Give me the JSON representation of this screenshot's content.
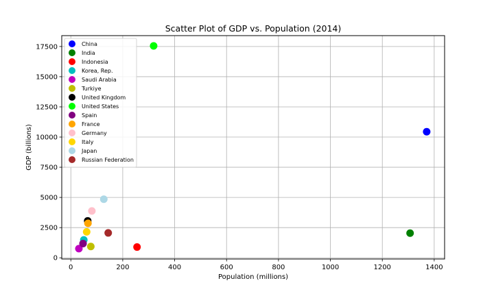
{
  "chart_data": {
    "type": "scatter",
    "title": "Scatter Plot of GDP vs. Population (2014)",
    "xlabel": "Population (millions)",
    "ylabel": "GDP (billions)",
    "xlim": [
      -35,
      1440
    ],
    "ylim": [
      -100,
      18400
    ],
    "xticks": [
      0,
      200,
      400,
      600,
      800,
      1000,
      1200,
      1400
    ],
    "yticks": [
      0,
      2500,
      5000,
      7500,
      10000,
      12500,
      15000,
      17500
    ],
    "grid": true,
    "legend_position": "upper-left",
    "series": [
      {
        "name": "China",
        "color": "#0000ff",
        "x": 1371,
        "y": 10440
      },
      {
        "name": "India",
        "color": "#008000",
        "x": 1307,
        "y": 2040
      },
      {
        "name": "Indonesia",
        "color": "#ff0000",
        "x": 255,
        "y": 890
      },
      {
        "name": "Korea, Rep.",
        "color": "#00bfbf",
        "x": 50,
        "y": 1480
      },
      {
        "name": "Saudi Arabia",
        "color": "#bf00bf",
        "x": 31,
        "y": 760
      },
      {
        "name": "Turkiye",
        "color": "#bfbf00",
        "x": 77,
        "y": 935
      },
      {
        "name": "United Kingdom",
        "color": "#000000",
        "x": 65,
        "y": 3060
      },
      {
        "name": "United States",
        "color": "#00ff00",
        "x": 319,
        "y": 17550
      },
      {
        "name": "Spain",
        "color": "#800080",
        "x": 47,
        "y": 1180
      },
      {
        "name": "France",
        "color": "#ffa500",
        "x": 66,
        "y": 2860
      },
      {
        "name": "Germany",
        "color": "#ffc0cb",
        "x": 81,
        "y": 3880
      },
      {
        "name": "Italy",
        "color": "#ffd700",
        "x": 61,
        "y": 2150
      },
      {
        "name": "Japan",
        "color": "#add8e6",
        "x": 127,
        "y": 4850
      },
      {
        "name": "Russian Federation",
        "color": "#a52a2a",
        "x": 144,
        "y": 2060
      }
    ]
  }
}
